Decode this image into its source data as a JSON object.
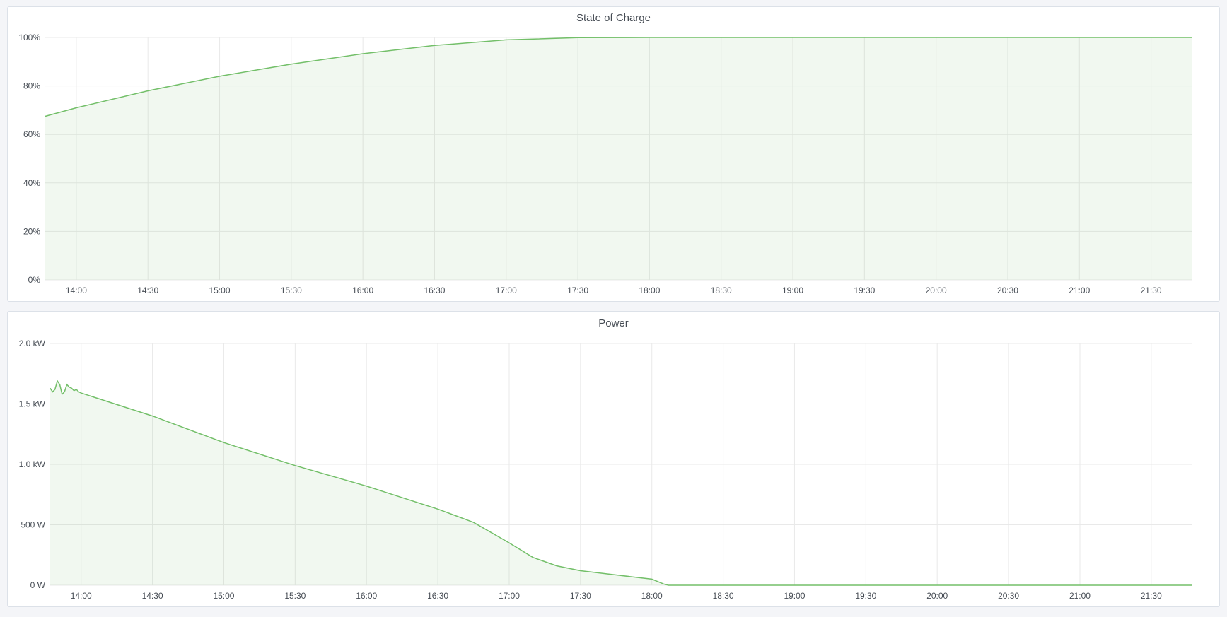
{
  "colors": {
    "series": "#73bf69",
    "fill": "rgba(115,191,105,0.1)",
    "grid": "#e9e9e9",
    "background": "#f4f5f8"
  },
  "chart_data": [
    {
      "type": "area",
      "title": "State of Charge",
      "x_range": [
        "13:47",
        "21:47"
      ],
      "x_ticks": [
        "14:00",
        "14:30",
        "15:00",
        "15:30",
        "16:00",
        "16:30",
        "17:00",
        "17:30",
        "18:00",
        "18:30",
        "19:00",
        "19:30",
        "20:00",
        "20:30",
        "21:00",
        "21:30"
      ],
      "y_ticks": [
        "0%",
        "20%",
        "40%",
        "60%",
        "80%",
        "100%"
      ],
      "ylim": [
        0,
        100
      ],
      "grid": true,
      "x": [
        "13:47",
        "14:00",
        "14:30",
        "15:00",
        "15:30",
        "16:00",
        "16:30",
        "17:00",
        "17:30",
        "18:00",
        "19:00",
        "20:00",
        "21:00",
        "21:47"
      ],
      "y": [
        67.5,
        71,
        78,
        84,
        89,
        93.3,
        96.7,
        99,
        99.9,
        100,
        100,
        100,
        100,
        100
      ]
    },
    {
      "type": "area",
      "title": "Power",
      "x_range": [
        "13:47",
        "21:47"
      ],
      "x_ticks": [
        "14:00",
        "14:30",
        "15:00",
        "15:30",
        "16:00",
        "16:30",
        "17:00",
        "17:30",
        "18:00",
        "18:30",
        "19:00",
        "19:30",
        "20:00",
        "20:30",
        "21:00",
        "21:30"
      ],
      "y_ticks": [
        "0 W",
        "500 W",
        "1.0 kW",
        "1.5 kW",
        "2.0 kW"
      ],
      "ylim": [
        0,
        2000
      ],
      "grid": true,
      "x": [
        "13:47",
        "13:48",
        "13:49",
        "13:50",
        "13:51",
        "13:52",
        "13:53",
        "13:54",
        "13:55",
        "13:56",
        "13:57",
        "13:58",
        "13:59",
        "14:00",
        "14:30",
        "15:00",
        "15:30",
        "16:00",
        "16:30",
        "16:45",
        "17:00",
        "17:10",
        "17:20",
        "17:30",
        "17:45",
        "18:00",
        "18:05",
        "18:07",
        "21:47"
      ],
      "y": [
        1630,
        1600,
        1620,
        1690,
        1660,
        1580,
        1600,
        1660,
        1640,
        1630,
        1610,
        1620,
        1600,
        1590,
        1400,
        1180,
        990,
        820,
        630,
        520,
        350,
        230,
        160,
        120,
        85,
        50,
        10,
        0,
        0
      ]
    }
  ]
}
